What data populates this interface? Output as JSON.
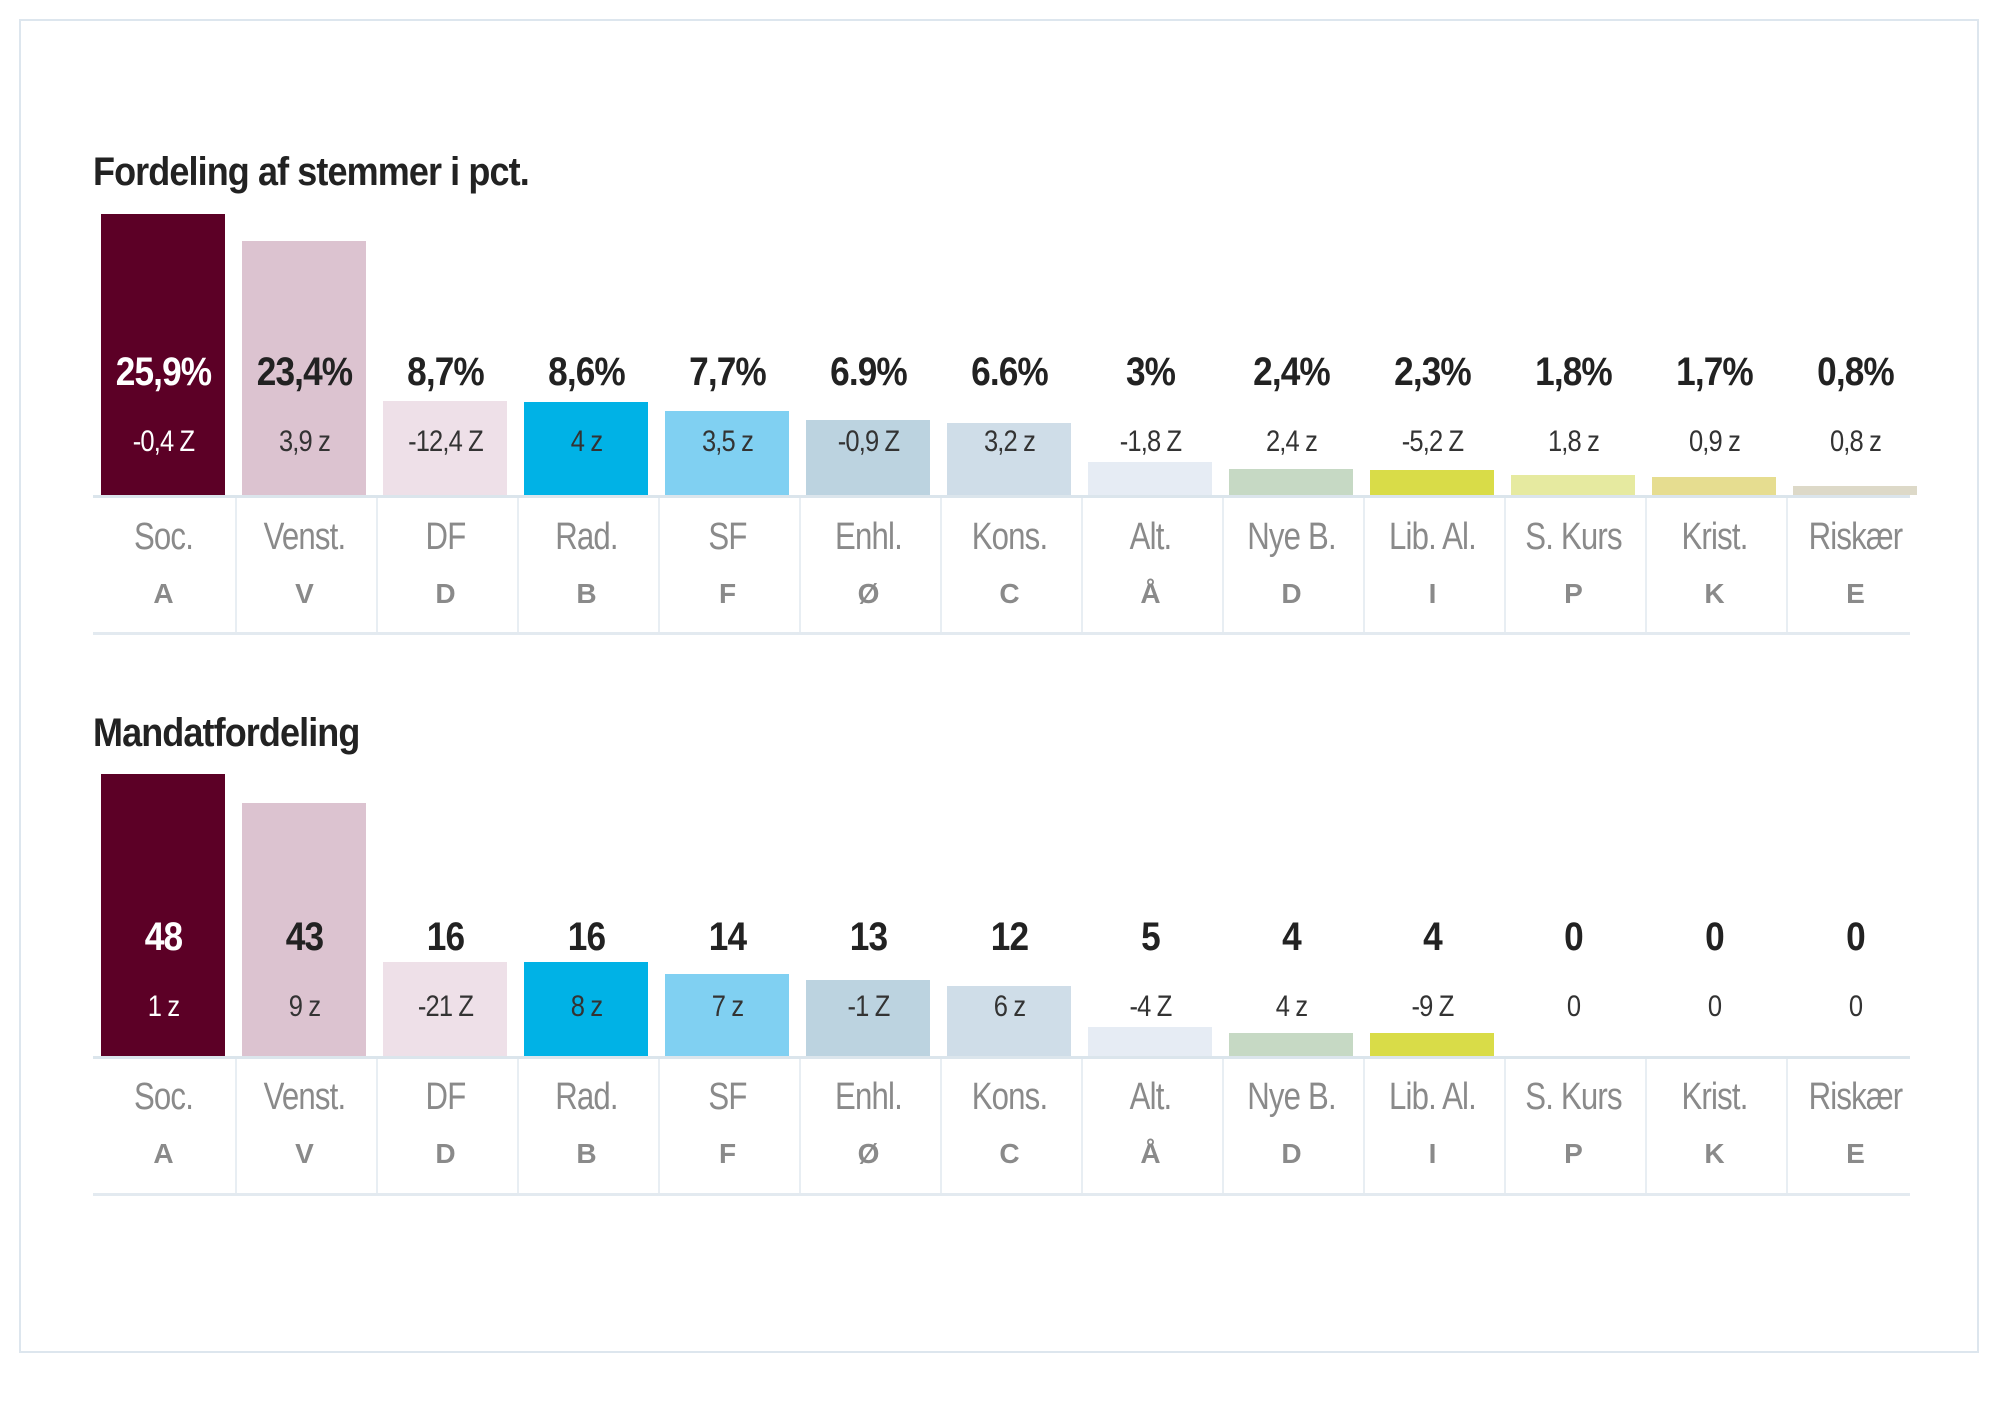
{
  "chart_data": [
    {
      "type": "bar",
      "title": "Fordeling af stemmer i pct.",
      "categories": [
        "Soc.",
        "Venst.",
        "DF",
        "Rad.",
        "SF",
        "Enhl.",
        "Kons.",
        "Alt.",
        "Nye B.",
        "Lib. Al.",
        "S. Kurs",
        "Krist.",
        "Riskær"
      ],
      "letters": [
        "A",
        "V",
        "D",
        "B",
        "F",
        "Ø",
        "C",
        "Å",
        "D",
        "I",
        "P",
        "K",
        "E"
      ],
      "values": [
        25.9,
        23.4,
        8.7,
        8.6,
        7.7,
        6.9,
        6.6,
        3,
        2.4,
        2.3,
        1.8,
        1.7,
        0.8
      ],
      "value_labels": [
        "25,9%",
        "23,4%",
        "8,7%",
        "8,6%",
        "7,7%",
        "6.9%",
        "6.6%",
        "3%",
        "2,4%",
        "2,3%",
        "1,8%",
        "1,7%",
        "0,8%"
      ],
      "change_labels": [
        "-0,4 Z",
        "3,9 z",
        "-12,4 Z",
        "4 z",
        "3,5 z",
        "-0,9 Z",
        "3,2 z",
        "-1,8 Z",
        "2,4 z",
        "-5,2 Z",
        "1,8 z",
        "0,9 z",
        "0,8 z"
      ],
      "ylim": [
        0,
        25.9
      ]
    },
    {
      "type": "bar",
      "title": "Mandatfordeling",
      "categories": [
        "Soc.",
        "Venst.",
        "DF",
        "Rad.",
        "SF",
        "Enhl.",
        "Kons.",
        "Alt.",
        "Nye B.",
        "Lib. Al.",
        "S. Kurs",
        "Krist.",
        "Riskær"
      ],
      "letters": [
        "A",
        "V",
        "D",
        "B",
        "F",
        "Ø",
        "C",
        "Å",
        "D",
        "I",
        "P",
        "K",
        "E"
      ],
      "values": [
        48,
        43,
        16,
        16,
        14,
        13,
        12,
        5,
        4,
        4,
        0,
        0,
        0
      ],
      "value_labels": [
        "48",
        "43",
        "16",
        "16",
        "14",
        "13",
        "12",
        "5",
        "4",
        "4",
        "0",
        "0",
        "0"
      ],
      "change_labels": [
        "1 z",
        "9 z",
        "-21 Z",
        "8 z",
        "7 z",
        "-1 Z",
        "6 z",
        "-4 Z",
        "4 z",
        "-9 Z",
        "0",
        "0",
        "0"
      ],
      "ylim": [
        0,
        48
      ]
    }
  ],
  "colors": [
    "#5c0026",
    "#dcc3d0",
    "#eee0e8",
    "#00b2e6",
    "#80d0f2",
    "#bcd3e0",
    "#cfdde8",
    "#e6ecf4",
    "#c6d9c4",
    "#d9dc48",
    "#e6eaa0",
    "#e6dd90",
    "#ddd9c8"
  ],
  "light_text_index": 0
}
